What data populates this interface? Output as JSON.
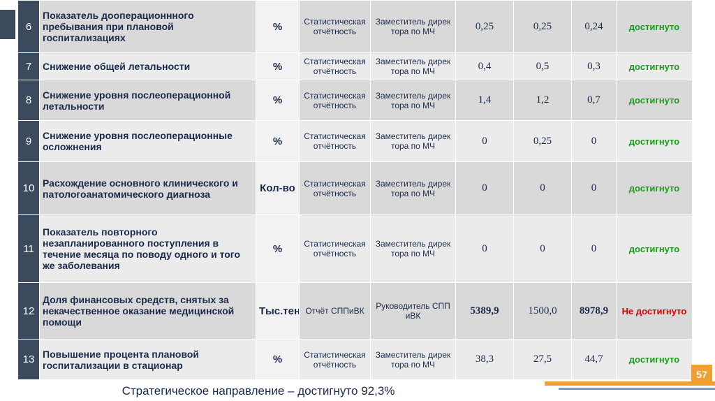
{
  "table": {
    "rows": [
      [
        "6",
        "Показатель дооперационнного пребывания при плановой госпитализациях",
        "%",
        "Статистическая отчётность",
        "Заместитель директора по МЧ",
        "0,25",
        "0,25",
        "0,24",
        "достигнуто"
      ],
      [
        "7",
        "Снижение общей летальности",
        "%",
        "Статистическая отчётность",
        "Заместитель директора по МЧ",
        "0,4",
        "0,5",
        "0,3",
        "достигнуто"
      ],
      [
        "8",
        "Снижение уровня послеоперационной летальности",
        "%",
        "Статистическая отчётность",
        "Заместитель директора по МЧ",
        "1,4",
        "1,2",
        "0,7",
        "достигнуто"
      ],
      [
        "9",
        "Снижение уровня послеоперационные осложнения",
        "%",
        "Статистическая отчётность",
        "Заместитель директора по МЧ",
        "0",
        "0,25",
        "0",
        "достигнуто"
      ],
      [
        "10",
        "Расхождение основного клинического и патологоанатомического диагноза",
        "Кол-во",
        "Статистическая отчётность",
        "Заместитель директора по МЧ",
        "0",
        "0",
        "0",
        "достигнуто"
      ],
      [
        "11",
        "Показатель повторного незапланированного поступления в течение месяца по поводу одного и того же заболевания",
        "%",
        "Статистическая отчётность",
        "Заместитель директора по МЧ",
        "0",
        "0",
        "0",
        "достигнуто"
      ],
      [
        "12",
        "Доля финансовых средств, снятых за некачественное оказание медицинской помощи",
        "Тыс.тенге",
        "Отчёт СППиВК",
        "Руководитель СППиВК",
        "5389,9",
        "1500,0",
        "8978,9",
        "Не достигнуто"
      ],
      [
        "13",
        "Повышение процента плановой госпитализации в стационар",
        "%",
        "Статистическая отчётность",
        "Заместитель директора по МЧ",
        "38,3",
        "27,5",
        "44,7",
        "достигнуто"
      ]
    ]
  },
  "footer": "Стратегическое направление – достигнуто 92,3%",
  "page_number": "57"
}
